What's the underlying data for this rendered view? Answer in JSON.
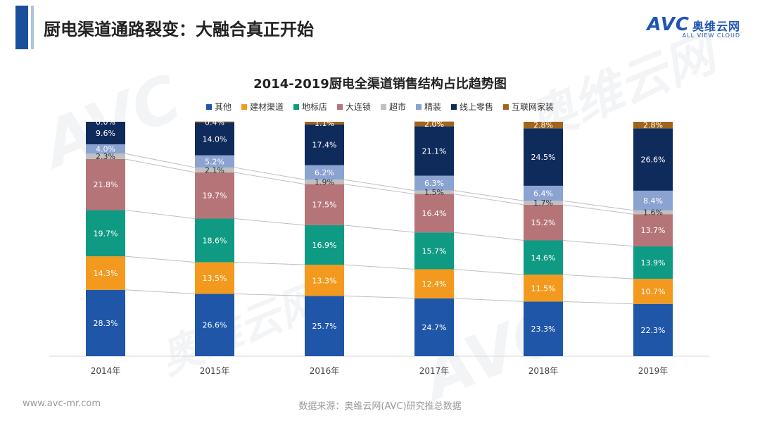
{
  "header": {
    "title": "厨电渠道通路裂变：大融合真正开始"
  },
  "logo": {
    "main": "AVC",
    "cn": "奥维云网",
    "sub": "ALL VIEW CLOUD"
  },
  "footer": {
    "website": "www.avc-mr.com",
    "source": "数据来源：奥维云网(AVC)研究推总数据"
  },
  "colors": {
    "accent": "#1a4f9c"
  },
  "chart_data": {
    "type": "bar",
    "stacked": true,
    "title": "2014-2019厨电全渠道销售结构占比趋势图",
    "categories": [
      "2014年",
      "2015年",
      "2016年",
      "2017年",
      "2018年",
      "2019年"
    ],
    "ylim": [
      0,
      100
    ],
    "unit": "%",
    "series": [
      {
        "name": "其他",
        "color": "#1f56a8",
        "values": [
          28.3,
          26.6,
          25.7,
          24.7,
          23.3,
          22.3
        ]
      },
      {
        "name": "建材渠道",
        "color": "#f39a1e",
        "values": [
          14.3,
          13.5,
          13.3,
          12.4,
          11.5,
          10.7
        ]
      },
      {
        "name": "地标店",
        "color": "#0f9a83",
        "values": [
          19.7,
          18.6,
          16.9,
          15.7,
          14.6,
          13.9
        ]
      },
      {
        "name": "大连锁",
        "color": "#b57578",
        "values": [
          21.8,
          19.7,
          17.5,
          16.4,
          15.2,
          13.7
        ]
      },
      {
        "name": "超市",
        "color": "#c0c0c0",
        "values": [
          2.3,
          2.1,
          1.9,
          1.5,
          1.7,
          1.6
        ]
      },
      {
        "name": "精装",
        "color": "#8aa3d1",
        "values": [
          4.0,
          5.2,
          6.2,
          6.3,
          6.4,
          8.4
        ]
      },
      {
        "name": "线上零售",
        "color": "#0f2b5b",
        "values": [
          9.6,
          14.0,
          17.4,
          21.1,
          24.5,
          26.6
        ]
      },
      {
        "name": "互联网家装",
        "color": "#a0651a",
        "values": [
          0.0,
          0.4,
          1.1,
          2.0,
          2.8,
          2.8
        ]
      }
    ],
    "legend_position": "top"
  }
}
